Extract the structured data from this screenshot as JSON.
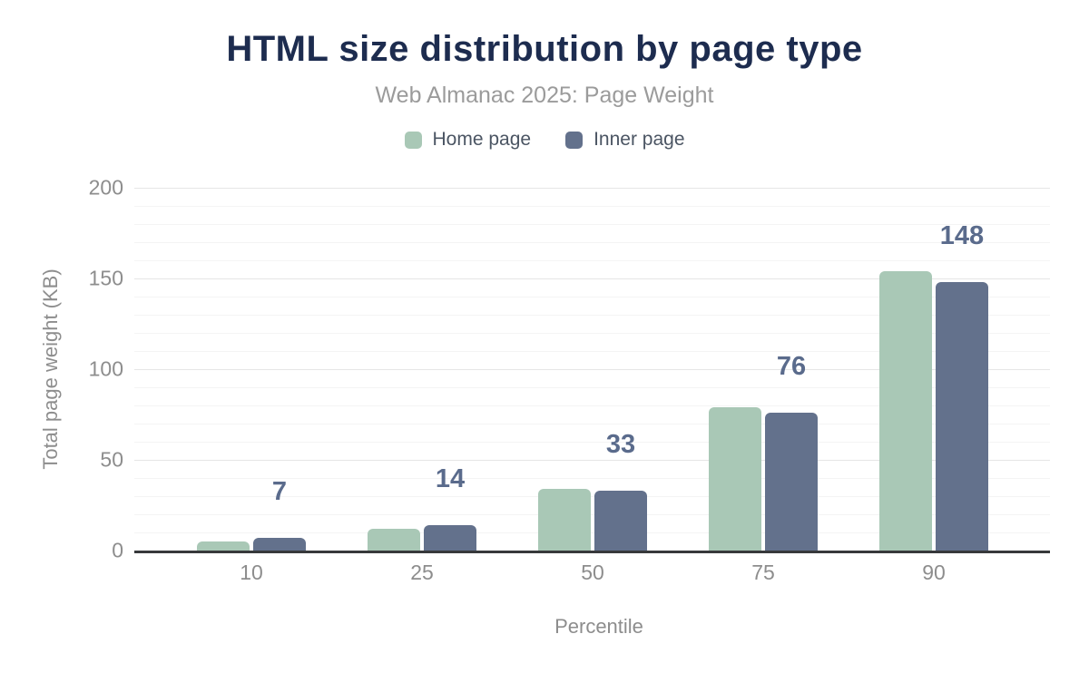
{
  "header": {
    "title": "HTML size distribution by page type",
    "subtitle": "Web Almanac 2025: Page Weight"
  },
  "colors": {
    "home": "#a9c8b6",
    "inner": "#63718c",
    "title": "#1d2c4f",
    "subtitle": "#9b9b9b",
    "axis_text": "#8d8d8d",
    "legend_text": "#4b5563",
    "data_label": "#5a6b8c",
    "axis_line": "#37393b",
    "grid_major": "#e6e6e6",
    "grid_minor": "#f4f4f4"
  },
  "chart_data": {
    "type": "bar",
    "title": "HTML size distribution by page type",
    "subtitle": "Web Almanac 2025: Page Weight",
    "xlabel": "Percentile",
    "ylabel": "Total page weight (KB)",
    "categories": [
      "10",
      "25",
      "50",
      "75",
      "90"
    ],
    "series": [
      {
        "name": "Home page",
        "color": "#a9c8b6",
        "values": [
          5,
          12,
          34,
          79,
          154
        ],
        "data_labels": false
      },
      {
        "name": "Inner page",
        "color": "#63718c",
        "values": [
          7,
          14,
          33,
          76,
          148
        ],
        "data_labels": true
      }
    ],
    "data_label_values": [
      "7",
      "14",
      "33",
      "76",
      "148"
    ],
    "ylim": [
      0,
      200
    ],
    "y_ticks": [
      0,
      50,
      100,
      150,
      200
    ],
    "y_minor_step": 10,
    "grid": true,
    "legend_position": "top"
  }
}
